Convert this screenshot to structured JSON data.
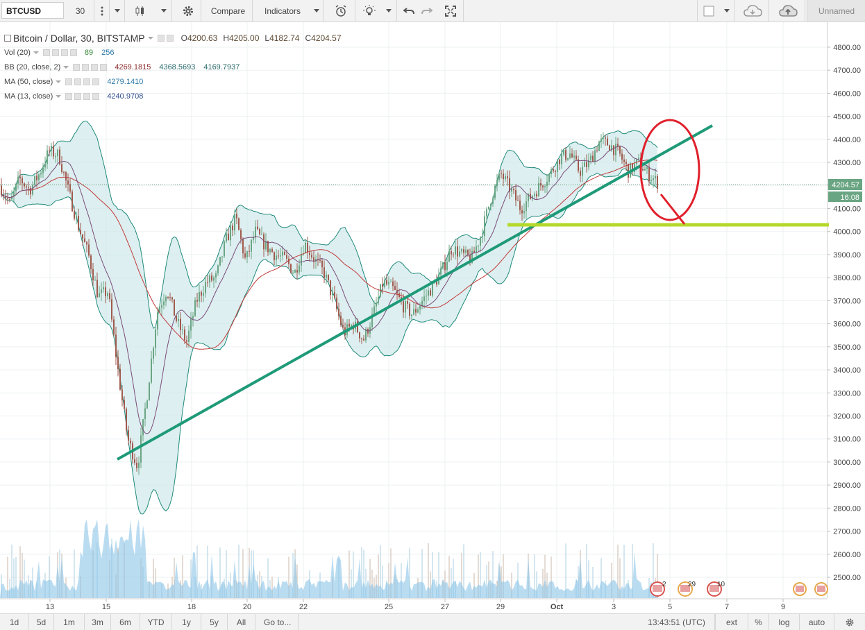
{
  "toolbar": {
    "symbol": "BTCUSD",
    "interval": "30",
    "compare_label": "Compare",
    "indicators_label": "Indicators",
    "layout_name": "Unnamed",
    "icons": [
      "more-vert-icon",
      "candles-icon",
      "gear-icon",
      "alert-clock-icon",
      "lightbulb-icon",
      "undo-icon",
      "redo-icon",
      "fullscreen-icon",
      "square-icon",
      "cloud-icon",
      "cloud-upload-icon"
    ]
  },
  "legend": {
    "title": "Bitcoin / Dollar, 30, BITSTAMP",
    "ohlc": {
      "o_label": "O",
      "o": "4200.63",
      "h_label": "H",
      "h": "4205.00",
      "l_label": "L",
      "l": "4182.74",
      "c_label": "C",
      "c": "4204.57"
    },
    "vol": {
      "name": "Vol (20)",
      "v1": "89",
      "v2": "256"
    },
    "bb": {
      "name": "BB (20, close, 2)",
      "v1": "4269.1815",
      "v2": "4368.5693",
      "v3": "4169.7937"
    },
    "ma50": {
      "name": "MA (50, close)",
      "v1": "4279.1410"
    },
    "ma13": {
      "name": "MA (13, close)",
      "v1": "4240.9708"
    }
  },
  "price_axis": {
    "ticks": [
      "4800.00",
      "4700.00",
      "4600.00",
      "4500.00",
      "4400.00",
      "4300.00",
      "4200.00",
      "4100.00",
      "4000.00",
      "3900.00",
      "3800.00",
      "3700.00",
      "3600.00",
      "3500.00",
      "3400.00",
      "3300.00",
      "3200.00",
      "3100.00",
      "3000.00",
      "2900.00",
      "2800.00",
      "2700.00",
      "2600.00",
      "2500.00"
    ],
    "last_price": "4204.57",
    "countdown": "16:08"
  },
  "time_axis": {
    "ticks": [
      "13",
      "15",
      "18",
      "20",
      "22",
      "25",
      "27",
      "29",
      "Oct",
      "3",
      "5",
      "7",
      "9"
    ]
  },
  "events": [
    "2",
    "29",
    "10"
  ],
  "bottom": {
    "ranges": [
      "1d",
      "5d",
      "1m",
      "3m",
      "6m",
      "YTD",
      "1y",
      "5y",
      "All"
    ],
    "goto": "Go to...",
    "time": "13:43:51 (UTC)",
    "ext": "ext",
    "pct": "%",
    "log": "log",
    "auto": "auto"
  },
  "colors": {
    "up": "#6ba583",
    "down": "#a05a4e",
    "bb_band": "#1e8a7a",
    "bb_fill": "#cfe8ea",
    "ma": "#7a4b7a",
    "trendline": "#1e9a78",
    "support": "#b5d92b",
    "annotation": "#e0202b",
    "volume": "#8cc4e8",
    "last_price_bg": "#6aa583"
  },
  "chart_data": {
    "type": "candlestick",
    "y_range": [
      2430,
      4840
    ],
    "closes": [
      4200,
      4120,
      4230,
      4180,
      4250,
      4350,
      4330,
      4170,
      4020,
      3900,
      3720,
      3740,
      3400,
      3100,
      2980,
      3300,
      3650,
      3750,
      3610,
      3520,
      3700,
      3780,
      3800,
      3960,
      4060,
      3870,
      4000,
      3940,
      3900,
      3880,
      3820,
      3950,
      3880,
      3820,
      3700,
      3560,
      3600,
      3530,
      3640,
      3780,
      3750,
      3680,
      3640,
      3700,
      3760,
      3830,
      3930,
      3900,
      3880,
      3990,
      4150,
      4250,
      4180,
      4100,
      4150,
      4200,
      4250,
      4320,
      4340,
      4260,
      4300,
      4390,
      4380,
      4340,
      4260,
      4300,
      4250,
      4210
    ],
    "annotations": {
      "trendline": [
        [
          169,
          662
        ],
        [
          1026,
          181
        ]
      ],
      "support_level": 4020,
      "circle": {
        "cx": 965,
        "cy": 245,
        "rx": 42,
        "ry": 72
      }
    }
  }
}
